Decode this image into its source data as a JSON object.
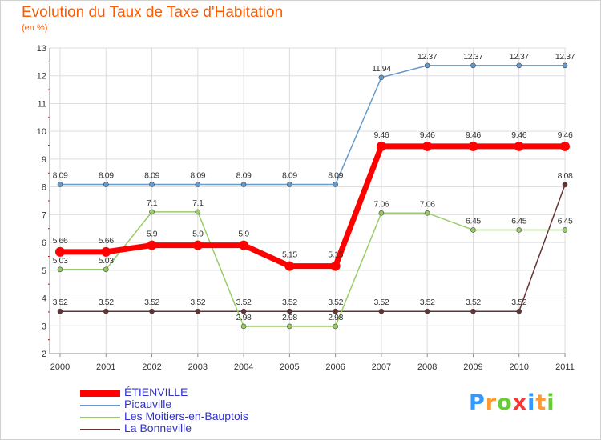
{
  "header": {
    "title": "Evolution du Taux de Taxe d'Habitation",
    "subtitle": "(en %)"
  },
  "logo": {
    "letters": [
      "P",
      "r",
      "o",
      "x",
      "i",
      "t",
      "i"
    ],
    "colors": [
      "#3399ff",
      "#ff9933",
      "#66cc33",
      "#ff3333",
      "#3399ff",
      "#ff9933",
      "#66cc33"
    ]
  },
  "chart_data": {
    "type": "line",
    "title": "Evolution du Taux de Taxe d'Habitation",
    "ylabel": "(en %)",
    "xlabel": "",
    "x": [
      "2000",
      "2001",
      "2002",
      "2003",
      "2004",
      "2005",
      "2006",
      "2007",
      "2008",
      "2009",
      "2010",
      "2011"
    ],
    "ylim": [
      2,
      13
    ],
    "yticks": [
      "2",
      "3",
      "4",
      "5",
      "6",
      "7",
      "8",
      "9",
      "10",
      "11",
      "12",
      "13"
    ],
    "grid": true,
    "legend_position": "bottom-left",
    "series": [
      {
        "name": "ÉTIENVILLE",
        "color": "#ff0000",
        "values": [
          5.66,
          5.66,
          5.9,
          5.9,
          5.9,
          5.15,
          5.15,
          9.46,
          9.46,
          9.46,
          9.46,
          9.46
        ],
        "labels": [
          "5.66",
          "5.66",
          "5.9",
          "5.9",
          "5.9",
          "5.15",
          "5.15",
          "9.46",
          "9.46",
          "9.46",
          "9.46",
          "9.46"
        ]
      },
      {
        "name": "Picauville",
        "color": "#6699cc",
        "values": [
          8.09,
          8.09,
          8.09,
          8.09,
          8.09,
          8.09,
          8.09,
          11.94,
          12.37,
          12.37,
          12.37,
          12.37
        ],
        "labels": [
          "8.09",
          "8.09",
          "8.09",
          "8.09",
          "8.09",
          "8.09",
          "8.09",
          "11.94",
          "12.37",
          "12.37",
          "12.37",
          "12.37"
        ]
      },
      {
        "name": "Les Moitiers-en-Bauptois",
        "color": "#99cc66",
        "values": [
          5.03,
          5.03,
          7.1,
          7.1,
          2.98,
          2.98,
          2.98,
          7.06,
          7.06,
          6.45,
          6.45,
          6.45
        ],
        "labels": [
          "5.03",
          "5.03",
          "7.1",
          "7.1",
          "2.98",
          "2.98",
          "2.98",
          "7.06",
          "7.06",
          "6.45",
          "6.45",
          "6.45"
        ]
      },
      {
        "name": "La Bonneville",
        "color": "#663333",
        "values": [
          3.52,
          3.52,
          3.52,
          3.52,
          3.52,
          3.52,
          3.52,
          3.52,
          3.52,
          3.52,
          3.52,
          8.08
        ],
        "labels": [
          "3.52",
          "3.52",
          "3.52",
          "3.52",
          "3.52",
          "3.52",
          "3.52",
          "3.52",
          "3.52",
          "3.52",
          "3.52",
          "8.08"
        ]
      }
    ]
  }
}
